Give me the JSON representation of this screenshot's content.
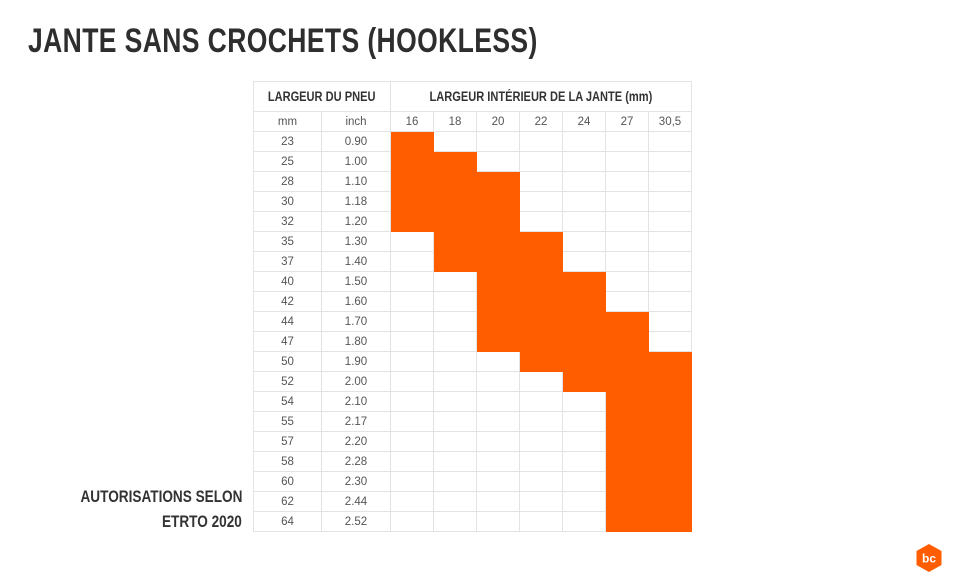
{
  "title": "JANTE SANS CROCHETS (HOOKLESS)",
  "note": [
    "AUTORISATIONS SELON",
    "ETRTO 2020"
  ],
  "colors": {
    "allowed": "#ff5d00",
    "grid": "#e3e3e3",
    "text": "#2e2e2e"
  },
  "logo_icon": "bc-hexagon-logo",
  "chart_data": {
    "type": "table",
    "title": "JANTE SANS CROCHETS (HOOKLESS)",
    "row_header": "LARGEUR DU PNEU",
    "col_header": "LARGEUR INTÉRIEUR DE LA JANTE (mm)",
    "row_units": [
      "mm",
      "inch"
    ],
    "rim_widths": [
      "16",
      "18",
      "20",
      "22",
      "24",
      "27",
      "30,5"
    ],
    "tyres": [
      {
        "mm": "23",
        "inch": "0.90",
        "allowed": [
          "16"
        ]
      },
      {
        "mm": "25",
        "inch": "1.00",
        "allowed": [
          "16",
          "18"
        ]
      },
      {
        "mm": "28",
        "inch": "1.10",
        "allowed": [
          "16",
          "18",
          "20"
        ]
      },
      {
        "mm": "30",
        "inch": "1.18",
        "allowed": [
          "16",
          "18",
          "20"
        ]
      },
      {
        "mm": "32",
        "inch": "1.20",
        "allowed": [
          "16",
          "18",
          "20"
        ]
      },
      {
        "mm": "35",
        "inch": "1.30",
        "allowed": [
          "18",
          "20",
          "22"
        ]
      },
      {
        "mm": "37",
        "inch": "1.40",
        "allowed": [
          "18",
          "20",
          "22"
        ]
      },
      {
        "mm": "40",
        "inch": "1.50",
        "allowed": [
          "20",
          "22",
          "24"
        ]
      },
      {
        "mm": "42",
        "inch": "1.60",
        "allowed": [
          "20",
          "22",
          "24"
        ]
      },
      {
        "mm": "44",
        "inch": "1.70",
        "allowed": [
          "20",
          "22",
          "24",
          "27"
        ]
      },
      {
        "mm": "47",
        "inch": "1.80",
        "allowed": [
          "20",
          "22",
          "24",
          "27"
        ]
      },
      {
        "mm": "50",
        "inch": "1.90",
        "allowed": [
          "22",
          "24",
          "27",
          "30,5"
        ]
      },
      {
        "mm": "52",
        "inch": "2.00",
        "allowed": [
          "24",
          "27",
          "30,5"
        ]
      },
      {
        "mm": "54",
        "inch": "2.10",
        "allowed": [
          "27",
          "30,5"
        ]
      },
      {
        "mm": "55",
        "inch": "2.17",
        "allowed": [
          "27",
          "30,5"
        ]
      },
      {
        "mm": "57",
        "inch": "2.20",
        "allowed": [
          "27",
          "30,5"
        ]
      },
      {
        "mm": "58",
        "inch": "2.28",
        "allowed": [
          "27",
          "30,5"
        ]
      },
      {
        "mm": "60",
        "inch": "2.30",
        "allowed": [
          "27",
          "30,5"
        ]
      },
      {
        "mm": "62",
        "inch": "2.44",
        "allowed": [
          "27",
          "30,5"
        ]
      },
      {
        "mm": "64",
        "inch": "2.52",
        "allowed": [
          "27",
          "30,5"
        ]
      }
    ]
  }
}
